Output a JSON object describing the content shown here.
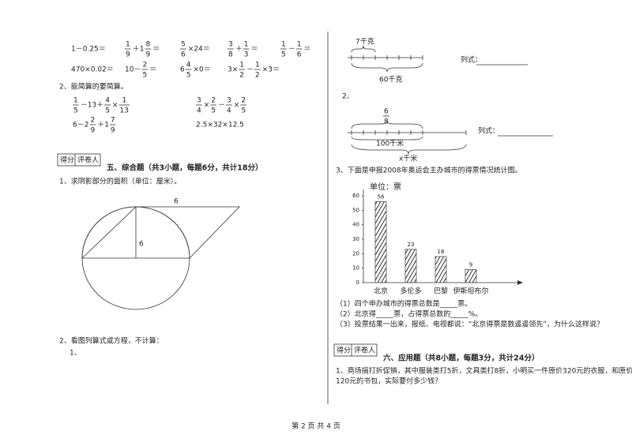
{
  "left": {
    "calc_rows": [
      [
        [
          "1－0.25＝"
        ],
        [
          {
            "n": "1",
            "d": "9"
          },
          "＋1",
          {
            "n": "8",
            "d": "9"
          },
          "＝"
        ],
        [
          {
            "n": "5",
            "d": "6"
          },
          "×24＝"
        ],
        [
          {
            "n": "3",
            "d": "8"
          },
          "＋",
          {
            "n": "1",
            "d": "3"
          },
          "＝"
        ],
        [
          {
            "n": "1",
            "d": "5"
          },
          "－",
          {
            "n": "1",
            "d": "6"
          },
          "＝"
        ]
      ],
      [
        [
          "470×0.02＝"
        ],
        [
          "10－",
          {
            "n": "2",
            "d": "5"
          },
          "＝"
        ],
        [
          "6",
          {
            "n": "4",
            "d": "5"
          },
          "×0＝"
        ],
        [
          "3×",
          {
            "n": "1",
            "d": "2"
          },
          "－",
          {
            "n": "1",
            "d": "2"
          },
          "×3＝"
        ]
      ]
    ],
    "simplify_title": "2、能简算的要简算。",
    "simplify_rows": [
      [
        [
          {
            "n": "1",
            "d": "5"
          },
          "－13＋",
          {
            "n": "4",
            "d": "5"
          },
          "×",
          {
            "n": "1",
            "d": "13"
          }
        ],
        [
          {
            "n": "3",
            "d": "4"
          },
          "×",
          {
            "n": "2",
            "d": "5"
          },
          "－",
          {
            "n": "3",
            "d": "4"
          },
          "×",
          {
            "n": "2",
            "d": "5"
          }
        ]
      ],
      [
        [
          "6－2",
          {
            "n": "2",
            "d": "9"
          },
          "＋1",
          {
            "n": "7",
            "d": "9"
          }
        ],
        [
          "2.5×32×12.5"
        ]
      ]
    ],
    "score_box": {
      "score": "得分",
      "grader": "评卷人"
    },
    "section5": "五、综合题（共3小题，每题6分，共计18分）",
    "q1": "1、求阴影部分的面积（单位：厘米）。",
    "circle_labels": [
      "6",
      "6"
    ],
    "q2": "2、看图列算式或方程，不计算：",
    "q2_1": "1、"
  },
  "right": {
    "fig1": {
      "top": "7千克",
      "bottom": "60千克",
      "formula": "列式："
    },
    "q2_num": "2、",
    "fig2": {
      "fraction": {
        "n": "6",
        "d": "8"
      },
      "inner": "100千米",
      "outer": "x千米",
      "formula": "列式："
    },
    "q3": "3、下面是申报2008年奥运会主办城市的得票情况统计图。",
    "questions": [
      "（1）四个申办城市的得票总数是_____票。",
      "（2）北京得_____票，占得票总数的_____%。",
      "（3）投票结果一出来，报纸、电视都说：“北京得票是数遥遥领先”，为什么这样说？"
    ],
    "score_box": {
      "score": "得分",
      "grader": "评卷人"
    },
    "section6": "六、应用题（共8小题，每题3分，共计24分）",
    "app_q1": [
      "1、商场搞打折促销，其中服装类打5折，文具类打8折，小明买一件原价320元的衣服，和原价",
      "120元的书包，实际要付多少钱？"
    ]
  },
  "chart_data": {
    "type": "bar",
    "y_label": "单位：票",
    "categories": [
      "北京",
      "多伦多",
      "巴黎",
      "伊斯坦布尔"
    ],
    "values": [
      56,
      23,
      18,
      9
    ],
    "color": "#555555",
    "ylim": [
      0,
      60
    ],
    "yticks": [
      0,
      10,
      20,
      30,
      40,
      50,
      60
    ]
  },
  "footer": "第 2 页 共 4 页"
}
